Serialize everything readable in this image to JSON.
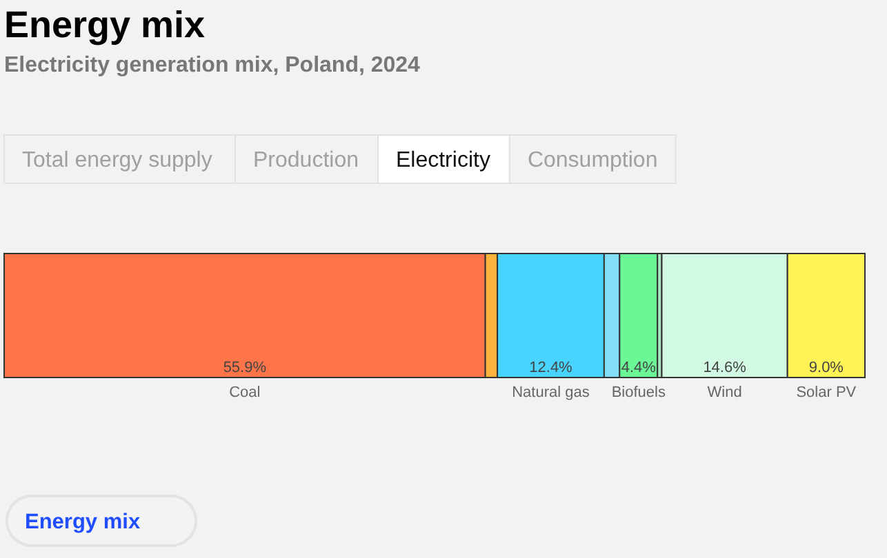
{
  "chart_data": {
    "type": "bar",
    "orientation": "horizontal",
    "stacked": true,
    "title": "Energy mix",
    "subtitle": "Electricity generation mix, Poland, 2024",
    "categories": [
      null
    ],
    "tick_labels": false,
    "series": [
      {
        "name": "Coal",
        "color": "#ff7449",
        "values": [
          55.9
        ],
        "value_labels": [
          "55.9%"
        ]
      },
      {
        "color": "#ffb33d",
        "values": [
          1.4
        ]
      },
      {
        "name": "Natural gas",
        "color": "#48d4ff",
        "values": [
          12.4
        ],
        "value_labels": [
          "12.4%"
        ]
      },
      {
        "color": "#82def8",
        "values": [
          1.8
        ]
      },
      {
        "name": "Biofuels",
        "color": "#6cf797",
        "values": [
          4.4
        ],
        "value_labels": [
          "4.4%"
        ]
      },
      {
        "color": "#a9e9c2",
        "values": [
          0.5
        ]
      },
      {
        "name": "Wind",
        "color": "#d1f9e3",
        "values": [
          14.6
        ],
        "value_labels": [
          "14.6%"
        ]
      },
      {
        "name": "Solar PV",
        "color": "#fff356",
        "values": [
          9.0
        ],
        "value_labels": [
          "9.0%"
        ]
      }
    ],
    "annotations": [
      "Total energy supply",
      "Production",
      "Electricity",
      "Consumption",
      "Energy mix"
    ]
  }
}
